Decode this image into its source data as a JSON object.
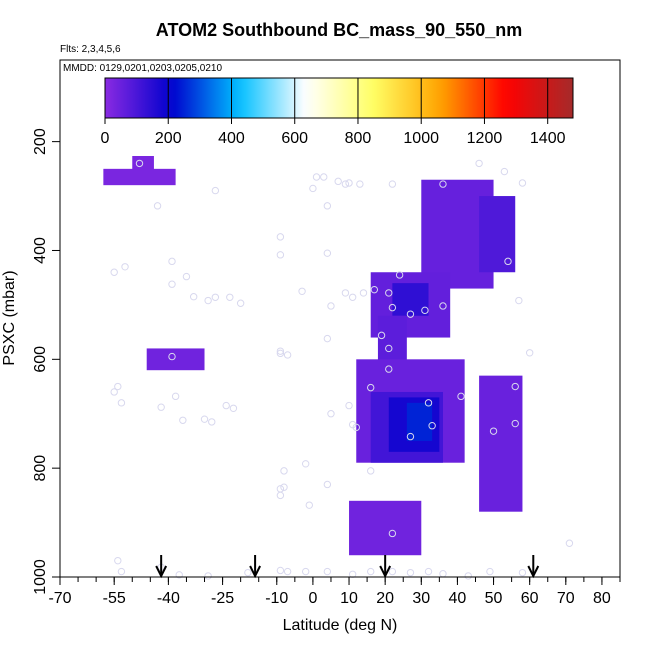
{
  "chart_data": {
    "type": "heatmap",
    "title": "ATOM2 Southbound BC_mass_90_550_nm",
    "flights_note": "Flts: 2,3,4,5,6",
    "dates_note": "MMDD: 0129,0201,0203,0205,0210",
    "xlabel": "Latitude (deg N)",
    "ylabel": "PSXC (mbar)",
    "xlim": [
      -70,
      85
    ],
    "ylim": [
      1000,
      50
    ],
    "y_reversed": true,
    "x_major_ticks": [
      -70,
      -55,
      -40,
      -25,
      -10,
      0,
      10,
      20,
      30,
      40,
      50,
      60,
      70,
      80
    ],
    "x_tick_labels": [
      "-70",
      "-55",
      "-40",
      "-25",
      "-10",
      "0",
      "10",
      "20",
      "30",
      "40",
      "50",
      "60",
      "70",
      "80"
    ],
    "y_ticks": [
      200,
      400,
      600,
      800,
      1000
    ],
    "y_tick_labels": [
      "200",
      "400",
      "600",
      "800",
      "1000"
    ],
    "colorbar": {
      "range": [
        0,
        1480
      ],
      "ticks": [
        0,
        200,
        400,
        600,
        800,
        1000,
        1200,
        1400
      ],
      "tick_labels": [
        "0",
        "200",
        "400",
        "600",
        "800",
        "1000",
        "1200",
        "1400"
      ],
      "colors": [
        "#8a2be2",
        "#0000cd",
        "#00bfff",
        "#ffffff",
        "#ffff66",
        "#ffa500",
        "#ff0000",
        "#a52a2a"
      ]
    },
    "background_value": 25,
    "cells": [
      {
        "lat": [
          -45,
          -38
        ],
        "p": [
          165,
          205
        ],
        "value": 25
      },
      {
        "lat": [
          -50,
          -44
        ],
        "p": [
          200,
          275
        ],
        "value": 25
      },
      {
        "lat": [
          -58,
          -38
        ],
        "p": [
          250,
          280
        ],
        "value": 25
      },
      {
        "lat": [
          30,
          50
        ],
        "p": [
          270,
          470
        ],
        "value": 55
      },
      {
        "lat": [
          46,
          56
        ],
        "p": [
          300,
          440
        ],
        "value": 90
      },
      {
        "lat": [
          16,
          38
        ],
        "p": [
          440,
          560
        ],
        "value": 60
      },
      {
        "lat": [
          22,
          32
        ],
        "p": [
          460,
          520
        ],
        "value": 140
      },
      {
        "lat": [
          18,
          26
        ],
        "p": [
          520,
          660
        ],
        "value": 70
      },
      {
        "lat": [
          12,
          42
        ],
        "p": [
          600,
          790
        ],
        "value": 50
      },
      {
        "lat": [
          16,
          36
        ],
        "p": [
          660,
          790
        ],
        "value": 110
      },
      {
        "lat": [
          21,
          35
        ],
        "p": [
          670,
          770
        ],
        "value": 180
      },
      {
        "lat": [
          26,
          33
        ],
        "p": [
          680,
          750
        ],
        "value": 250
      },
      {
        "lat": [
          46,
          58
        ],
        "p": [
          630,
          880
        ],
        "value": 50
      },
      {
        "lat": [
          10,
          30
        ],
        "p": [
          860,
          960
        ],
        "value": 40
      },
      {
        "lat": [
          -46,
          -30
        ],
        "p": [
          580,
          620
        ],
        "value": 40
      }
    ],
    "flight_points": [
      {
        "lat": -48,
        "p": 200
      },
      {
        "lat": -44,
        "p": 200
      },
      {
        "lat": -42,
        "p": 200
      },
      {
        "lat": -48,
        "p": 240
      },
      {
        "lat": -43,
        "p": 318
      },
      {
        "lat": -27,
        "p": 290
      },
      {
        "lat": -52,
        "p": 430
      },
      {
        "lat": -55,
        "p": 440
      },
      {
        "lat": -39,
        "p": 420
      },
      {
        "lat": -39,
        "p": 462
      },
      {
        "lat": -35,
        "p": 448
      },
      {
        "lat": -33,
        "p": 485
      },
      {
        "lat": -29,
        "p": 492
      },
      {
        "lat": -27,
        "p": 486
      },
      {
        "lat": -23,
        "p": 486
      },
      {
        "lat": -20,
        "p": 497
      },
      {
        "lat": -9,
        "p": 375
      },
      {
        "lat": -9,
        "p": 408
      },
      {
        "lat": 1,
        "p": 265
      },
      {
        "lat": 3,
        "p": 265
      },
      {
        "lat": 0,
        "p": 286
      },
      {
        "lat": 4,
        "p": 318
      },
      {
        "lat": 7,
        "p": 273
      },
      {
        "lat": 9,
        "p": 278
      },
      {
        "lat": 10,
        "p": 276
      },
      {
        "lat": 13,
        "p": 278
      },
      {
        "lat": 22,
        "p": 278
      },
      {
        "lat": 36,
        "p": 278
      },
      {
        "lat": 46,
        "p": 240
      },
      {
        "lat": 53,
        "p": 255
      },
      {
        "lat": 58,
        "p": 276
      },
      {
        "lat": 4,
        "p": 405
      },
      {
        "lat": -3,
        "p": 475
      },
      {
        "lat": 5,
        "p": 502
      },
      {
        "lat": 9,
        "p": 478
      },
      {
        "lat": 11,
        "p": 486
      },
      {
        "lat": 14,
        "p": 478
      },
      {
        "lat": 17,
        "p": 472
      },
      {
        "lat": 21,
        "p": 478
      },
      {
        "lat": 24,
        "p": 445
      },
      {
        "lat": 22,
        "p": 505
      },
      {
        "lat": 27,
        "p": 517
      },
      {
        "lat": 31,
        "p": 510
      },
      {
        "lat": 36,
        "p": 502
      },
      {
        "lat": 54,
        "p": 420
      },
      {
        "lat": 57,
        "p": 492
      },
      {
        "lat": 60,
        "p": 588
      },
      {
        "lat": 56,
        "p": 650
      },
      {
        "lat": 56,
        "p": 718
      },
      {
        "lat": 50,
        "p": 732
      },
      {
        "lat": 41,
        "p": 668
      },
      {
        "lat": 32,
        "p": 680
      },
      {
        "lat": 33,
        "p": 722
      },
      {
        "lat": 27,
        "p": 742
      },
      {
        "lat": 19,
        "p": 556
      },
      {
        "lat": 21,
        "p": 618
      },
      {
        "lat": 21,
        "p": 580
      },
      {
        "lat": 4,
        "p": 562
      },
      {
        "lat": 11,
        "p": 720
      },
      {
        "lat": 12,
        "p": 725
      },
      {
        "lat": 16,
        "p": 652
      },
      {
        "lat": 10,
        "p": 685
      },
      {
        "lat": 5,
        "p": 700
      },
      {
        "lat": -9,
        "p": 585
      },
      {
        "lat": -9,
        "p": 589
      },
      {
        "lat": -7,
        "p": 592
      },
      {
        "lat": -39,
        "p": 595
      },
      {
        "lat": -55,
        "p": 660
      },
      {
        "lat": -54,
        "p": 650
      },
      {
        "lat": -53,
        "p": 680
      },
      {
        "lat": -38,
        "p": 668
      },
      {
        "lat": -42,
        "p": 688
      },
      {
        "lat": -36,
        "p": 712
      },
      {
        "lat": -30,
        "p": 710
      },
      {
        "lat": -28,
        "p": 715
      },
      {
        "lat": -24,
        "p": 685
      },
      {
        "lat": -22,
        "p": 690
      },
      {
        "lat": -8,
        "p": 805
      },
      {
        "lat": -8,
        "p": 835
      },
      {
        "lat": -9,
        "p": 838
      },
      {
        "lat": -9,
        "p": 850
      },
      {
        "lat": -2,
        "p": 792
      },
      {
        "lat": 4,
        "p": 830
      },
      {
        "lat": 16,
        "p": 805
      },
      {
        "lat": -1,
        "p": 868
      },
      {
        "lat": 22,
        "p": 920
      },
      {
        "lat": -54,
        "p": 970
      },
      {
        "lat": -53,
        "p": 990
      },
      {
        "lat": -42,
        "p": 982
      },
      {
        "lat": -37,
        "p": 996
      },
      {
        "lat": -29,
        "p": 998
      },
      {
        "lat": -18,
        "p": 992
      },
      {
        "lat": -9,
        "p": 988
      },
      {
        "lat": -7,
        "p": 990
      },
      {
        "lat": -2,
        "p": 990
      },
      {
        "lat": 4,
        "p": 990
      },
      {
        "lat": 11,
        "p": 995
      },
      {
        "lat": 16,
        "p": 990
      },
      {
        "lat": 22,
        "p": 990
      },
      {
        "lat": 27,
        "p": 992
      },
      {
        "lat": 32,
        "p": 990
      },
      {
        "lat": 36,
        "p": 994
      },
      {
        "lat": 43,
        "p": 998
      },
      {
        "lat": 49,
        "p": 990
      },
      {
        "lat": 58,
        "p": 992
      },
      {
        "lat": 71,
        "p": 938
      }
    ],
    "arrows_lat": [
      -42,
      -16,
      20,
      61
    ]
  }
}
